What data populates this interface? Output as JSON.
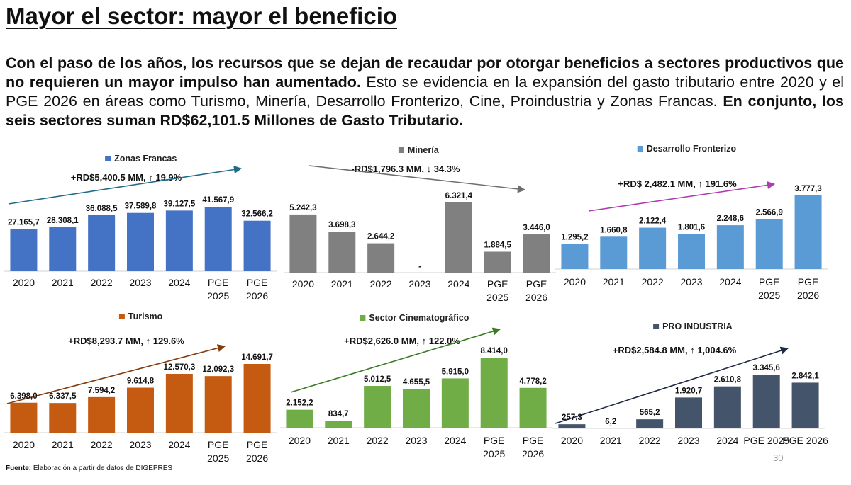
{
  "page": {
    "title": "Mayor el sector: mayor el beneficio",
    "intro_bold_1": "Con el paso de los años, los recursos que se dejan de recaudar por otorgar beneficios a sectores productivos que no requieren un mayor impulso han aumentado.",
    "intro_normal": " Esto se evidencia en la expansión del gasto tributario entre 2020 y el PGE 2026 en áreas como Turismo, Minería, Desarrollo Fronterizo, Cine, Proindustria y Zonas Francas. ",
    "intro_bold_2": "En conjunto, los seis sectores suman RD$62,101.5 Millones de Gasto Tributario.",
    "footer_label": "Fuente:",
    "footer_text": " Elaboración a partir de datos de DIGEPRES",
    "page_number": "30"
  },
  "chart_data": [
    {
      "type": "bar",
      "legend": "Zonas Francas",
      "color": "#4472c4",
      "arrow_color": "#1f6b8a",
      "annotation": "+RD$5,400.5 MM, ↑ 19.9%",
      "categories": [
        "2020",
        "2021",
        "2022",
        "2023",
        "2024",
        "PGE 2025",
        "PGE 2026"
      ],
      "values": [
        27165.7,
        28308.1,
        36088.5,
        37589.8,
        39127.5,
        41567.9,
        32566.2
      ],
      "labels": [
        "27.165,7",
        "28.308,1",
        "36.088,5",
        "37.589,8",
        "39.127,5",
        "41.567,9",
        "32.566,2"
      ]
    },
    {
      "type": "bar",
      "legend": "Minería",
      "color": "#808080",
      "arrow_color": "#6e6e6e",
      "annotation": "-RD$1,796.3 MM, ↓ 34.3%",
      "categories": [
        "2020",
        "2021",
        "2022",
        "2023",
        "2024",
        "PGE 2025",
        "PGE 2026"
      ],
      "values": [
        5242.3,
        3698.3,
        2644.2,
        0,
        6321.4,
        1884.5,
        3446.0
      ],
      "labels": [
        "5.242,3",
        "3.698,3",
        "2.644,2",
        "-",
        "6.321,4",
        "1.884,5",
        "3.446,0"
      ]
    },
    {
      "type": "bar",
      "legend": "Desarrollo Fronterizo",
      "color": "#5b9bd5",
      "arrow_color": "#b03ab0",
      "annotation": "+RD$ 2,482.1 MM, ↑ 191.6%",
      "categories": [
        "2020",
        "2021",
        "2022",
        "2023",
        "2024",
        "PGE 2025",
        "PGE 2026"
      ],
      "values": [
        1295.2,
        1660.8,
        2122.4,
        1801.6,
        2248.6,
        2566.9,
        3777.3
      ],
      "labels": [
        "1.295,2",
        "1.660,8",
        "2.122,4",
        "1.801,6",
        "2.248,6",
        "2.566,9",
        "3.777,3"
      ]
    },
    {
      "type": "bar",
      "legend": "Turismo",
      "color": "#c55a11",
      "arrow_color": "#843c0c",
      "annotation": "+RD$8,293.7 MM, ↑ 129.6%",
      "categories": [
        "2020",
        "2021",
        "2022",
        "2023",
        "2024",
        "PGE 2025",
        "PGE 2026"
      ],
      "values": [
        6398.0,
        6337.5,
        7594.2,
        9614.8,
        12570.3,
        12092.3,
        14691.7
      ],
      "labels": [
        "6.398,0",
        "6.337,5",
        "7.594,2",
        "9.614,8",
        "12.570,3",
        "12.092,3",
        "14.691,7"
      ]
    },
    {
      "type": "bar",
      "legend": "Sector Cinematográfico",
      "color": "#70ad47",
      "arrow_color": "#3a7a22",
      "annotation": "+RD$2,626.0 MM, ↑ 122.0%",
      "categories": [
        "2020",
        "2021",
        "2022",
        "2023",
        "2024",
        "PGE 2025",
        "PGE 2026"
      ],
      "values": [
        2152.2,
        834.7,
        5012.5,
        4655.5,
        5915.0,
        8414.0,
        4778.2
      ],
      "labels": [
        "2.152,2",
        "834,7",
        "5.012,5",
        "4.655,5",
        "5.915,0",
        "8.414,0",
        "4.778,2"
      ]
    },
    {
      "type": "bar",
      "legend": "PRO INDUSTRIA",
      "color": "#44546a",
      "arrow_color": "#1f2a44",
      "annotation": "+RD$2,584.8 MM, ↑ 1,004.6%",
      "categories": [
        "2020",
        "2021",
        "2022",
        "2023",
        "2024",
        "PGE 2025",
        "PGE 2026"
      ],
      "values": [
        257.3,
        6.2,
        565.2,
        1920.7,
        2610.8,
        3345.6,
        2842.1
      ],
      "labels": [
        "257,3",
        "6,2",
        "565,2",
        "1.920,7",
        "2.610,8",
        "3.345,6",
        "2.842,1"
      ]
    }
  ]
}
